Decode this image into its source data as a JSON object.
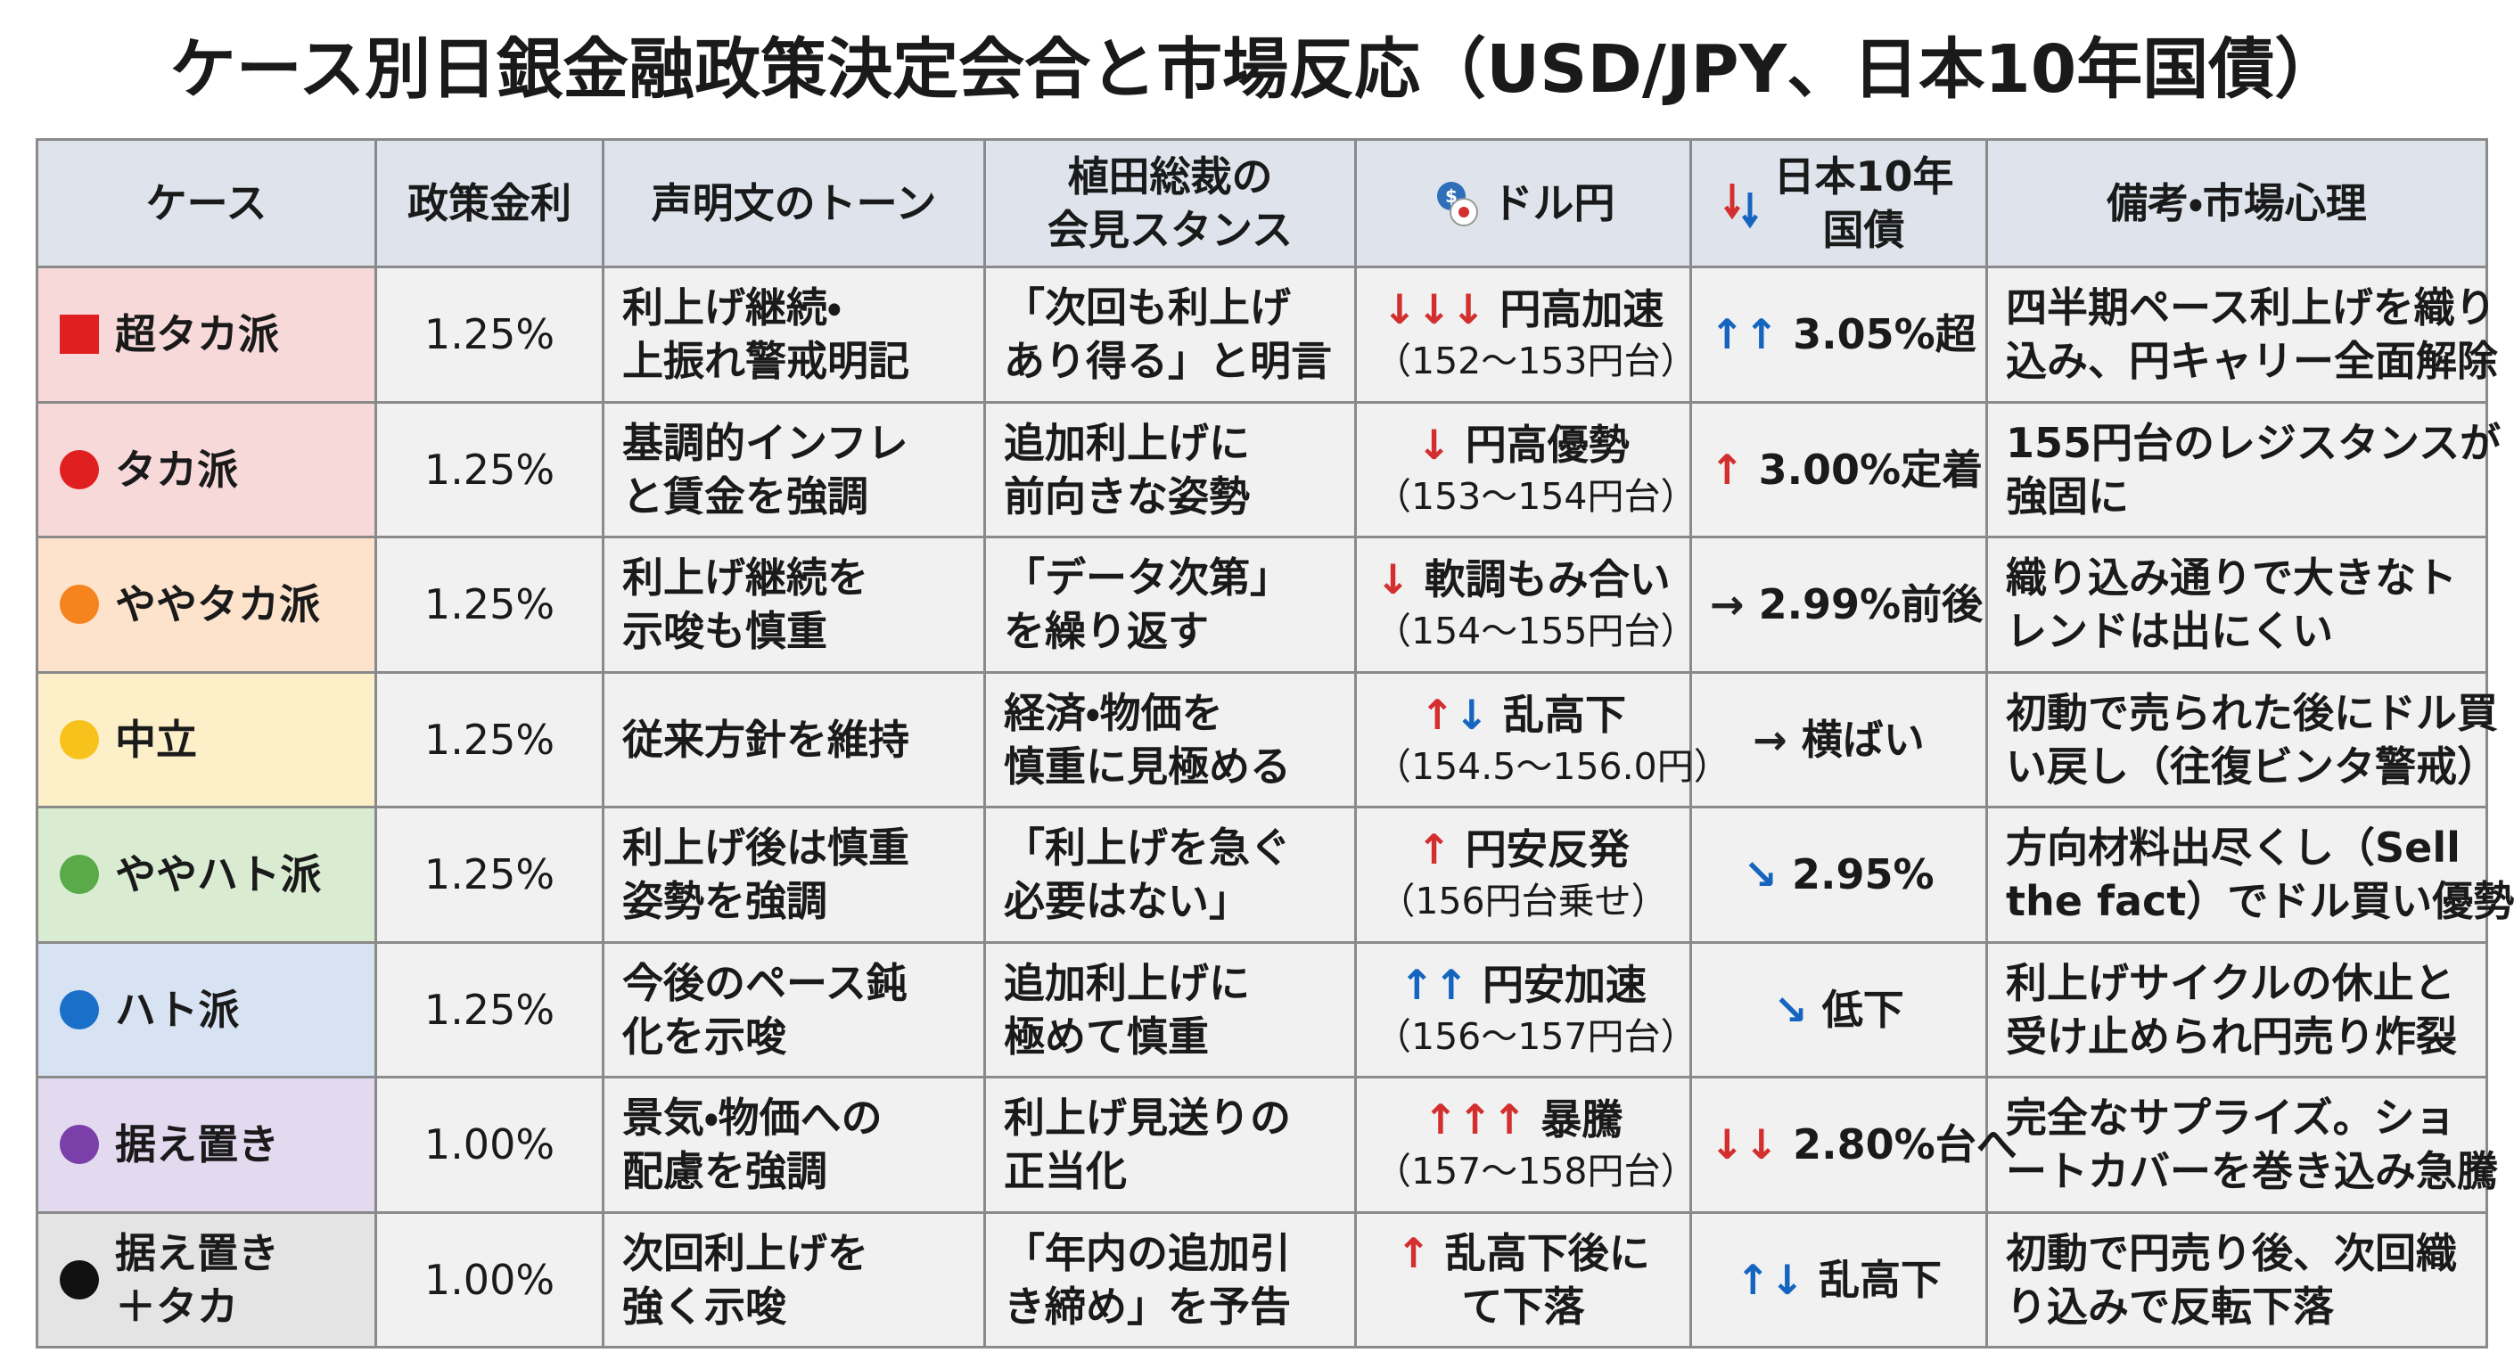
{
  "header": {
    "title": "ケース別日銀金融政策決定会合と市場反応（USD/JPY、日本10年国債）"
  },
  "table": {
    "columns": [
      [
        "ケース"
      ],
      [
        "政策金利"
      ],
      [
        "声明文のトーン"
      ],
      [
        "植田総裁の",
        "会見スタンス"
      ],
      [
        "ドル円"
      ],
      [
        "日本10年",
        "国債"
      ],
      [
        "備考・市場心理"
      ]
    ],
    "rows": [
      {
        "case": [
          "超タカ派"
        ],
        "marker": "square",
        "marker_color": "#e02020",
        "bg": "#f7d9da",
        "rate": "1.25%",
        "tone": [
          "利上げ継続・",
          "上振れ警戒明記"
        ],
        "stance": [
          "「次回も利上げ",
          "あり得る」と明言"
        ],
        "usdjpy": {
          "arrows": [
            {
              "text": "↓↓↓",
              "color": "#d32f2f"
            }
          ],
          "lines": [
            "円高加速",
            "（152～153円台）"
          ]
        },
        "jgb": {
          "arrows": [
            {
              "text": "↑↑",
              "color": "#1565c0"
            }
          ],
          "lines": [
            "3.05%超"
          ]
        },
        "note": [
          "四半期ペース利上げを織り",
          "込み、円キャリー全面解除"
        ]
      },
      {
        "case": [
          "タカ派"
        ],
        "marker": "circle",
        "marker_color": "#e02020",
        "bg": "#f7d9da",
        "rate": "1.25%",
        "tone": [
          "基調的インフレ",
          "と賃金を強調"
        ],
        "stance": [
          "追加利上げに",
          "前向きな姿勢"
        ],
        "usdjpy": {
          "arrows": [
            {
              "text": "↓",
              "color": "#d32f2f"
            }
          ],
          "lines": [
            "円高優勢",
            "（153～154円台）"
          ]
        },
        "jgb": {
          "arrows": [
            {
              "text": "↑",
              "color": "#d32f2f"
            }
          ],
          "lines": [
            "3.00%定着"
          ]
        },
        "note": [
          "155円台のレジスタンスが",
          "強固に"
        ]
      },
      {
        "case": [
          "ややタカ派"
        ],
        "marker": "circle",
        "marker_color": "#f5841f",
        "bg": "#fde3cc",
        "rate": "1.25%",
        "tone": [
          "利上げ継続を",
          "示唆も慎重"
        ],
        "stance": [
          "「データ次第」",
          "を繰り返す"
        ],
        "usdjpy": {
          "arrows": [
            {
              "text": "↓",
              "color": "#d32f2f"
            }
          ],
          "lines": [
            "軟調もみ合い",
            "（154～155円台）"
          ]
        },
        "jgb": {
          "arrows": [
            {
              "text": "→",
              "color": "#222222"
            }
          ],
          "lines": [
            "2.99%前後"
          ]
        },
        "note": [
          "織り込み通りで大きなト",
          "レンドは出にくい"
        ]
      },
      {
        "case": [
          "中立"
        ],
        "marker": "circle",
        "marker_color": "#f8c21c",
        "bg": "#fdf0c8",
        "rate": "1.25%",
        "tone": [
          "従来方針を維持"
        ],
        "stance": [
          "経済・物価を",
          "慎重に見極める"
        ],
        "usdjpy": {
          "arrows": [
            {
              "text": "↑",
              "color": "#d32f2f"
            },
            {
              "text": "↓",
              "color": "#1565c0"
            }
          ],
          "lines": [
            "乱高下",
            "（154.5～156.0円）"
          ]
        },
        "jgb": {
          "arrows": [
            {
              "text": "→",
              "color": "#222222"
            }
          ],
          "lines": [
            "横ばい"
          ]
        },
        "note": [
          "初動で売られた後にドル買",
          "い戻し（往復ビンタ警戒）"
        ]
      },
      {
        "case": [
          "ややハト派"
        ],
        "marker": "circle",
        "marker_color": "#5aaa4a",
        "bg": "#d9ecd2",
        "rate": "1.25%",
        "tone": [
          "利上げ後は慎重",
          "姿勢を強調"
        ],
        "stance": [
          "「利上げを急ぐ",
          "必要はない」"
        ],
        "usdjpy": {
          "arrows": [
            {
              "text": "↑",
              "color": "#d32f2f"
            }
          ],
          "lines": [
            "円安反発",
            "（156円台乗せ）"
          ]
        },
        "jgb": {
          "arrows": [
            {
              "text": "↘",
              "color": "#1565c0"
            }
          ],
          "lines": [
            "2.95%"
          ]
        },
        "note": [
          "方向材料出尽くし（Sell",
          "the fact）でドル買い優勢"
        ]
      },
      {
        "case": [
          "ハト派"
        ],
        "marker": "circle",
        "marker_color": "#1a6fc9",
        "bg": "#d7e3f3",
        "rate": "1.25%",
        "tone": [
          "今後のペース鈍",
          "化を示唆"
        ],
        "stance": [
          "追加利上げに",
          "極めて慎重"
        ],
        "usdjpy": {
          "arrows": [
            {
              "text": "↑↑",
              "color": "#1565c0"
            }
          ],
          "lines": [
            "円安加速",
            "（156～157円台）"
          ]
        },
        "jgb": {
          "arrows": [
            {
              "text": "↘",
              "color": "#1565c0"
            }
          ],
          "lines": [
            "低下"
          ]
        },
        "note": [
          "利上げサイクルの休止と",
          "受け止められ円売り炸裂"
        ]
      },
      {
        "case": [
          "据え置き"
        ],
        "marker": "circle",
        "marker_color": "#7a3fa8",
        "bg": "#e3daf0",
        "rate": "1.00%",
        "tone": [
          "景気・物価への",
          "配慮を強調"
        ],
        "stance": [
          "利上げ見送りの",
          "正当化"
        ],
        "usdjpy": {
          "arrows": [
            {
              "text": "↑↑↑",
              "color": "#d32f2f"
            }
          ],
          "lines": [
            "暴騰",
            "（157～158円台）"
          ]
        },
        "jgb": {
          "arrows": [
            {
              "text": "↓↓",
              "color": "#d32f2f"
            }
          ],
          "lines": [
            "2.80%台へ"
          ]
        },
        "note": [
          "完全なサプライズ。ショ",
          "ートカバーを巻き込み急騰"
        ]
      },
      {
        "case": [
          "据え置き",
          "＋タカ"
        ],
        "marker": "circle",
        "marker_color": "#111111",
        "bg": "#e4e4e4",
        "rate": "1.00%",
        "tone": [
          "次回利上げを",
          "強く示唆"
        ],
        "stance": [
          "「年内の追加引",
          "き締め」を予告"
        ],
        "usdjpy": {
          "arrows": [
            {
              "text": "↑",
              "color": "#d32f2f"
            }
          ],
          "lines": [
            "乱高下後に",
            "て下落"
          ]
        },
        "jgb": {
          "arrows": [
            {
              "text": "↑",
              "color": "#1565c0"
            },
            {
              "text": "↓",
              "color": "#1565c0"
            }
          ],
          "lines": [
            "乱高下"
          ]
        },
        "note": [
          "初動で円売り後、次回織",
          "り込みで反転下落"
        ]
      }
    ]
  }
}
